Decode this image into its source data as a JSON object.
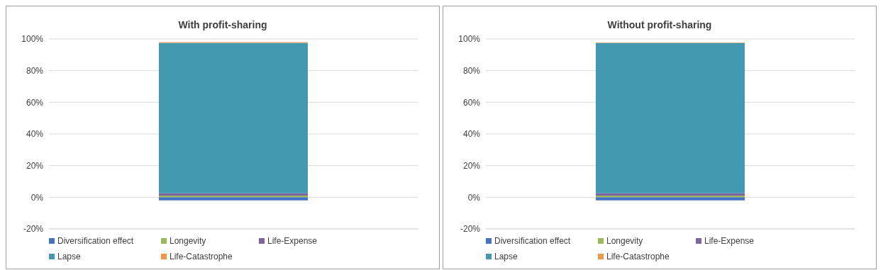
{
  "chart_data": [
    {
      "type": "bar",
      "title": "With profit-sharing",
      "categories": [
        null
      ],
      "stacked": true,
      "series": [
        {
          "name": "Diversification effect",
          "color": "#4472c4",
          "values": [
            -2
          ]
        },
        {
          "name": "Longevity",
          "color": "#9bbb59",
          "values": [
            1
          ]
        },
        {
          "name": "Life-Expense",
          "color": "#8064a2",
          "values": [
            1.5
          ]
        },
        {
          "name": "Lapse",
          "color": "#4299b0",
          "values": [
            95
          ]
        },
        {
          "name": "Life-Catastrophe",
          "color": "#f79646",
          "values": [
            0.5
          ]
        }
      ],
      "ylim": [
        -20,
        100
      ],
      "yticks": [
        {
          "value": -20,
          "label": "-20%"
        },
        {
          "value": 0,
          "label": "0%"
        },
        {
          "value": 20,
          "label": "20%"
        },
        {
          "value": 40,
          "label": "40%"
        },
        {
          "value": 60,
          "label": "60%"
        },
        {
          "value": 80,
          "label": "80%"
        },
        {
          "value": 100,
          "label": "100%"
        }
      ],
      "grid": "y",
      "legend": "bottom"
    },
    {
      "type": "bar",
      "title": "Without profit-sharing",
      "categories": [
        null
      ],
      "stacked": true,
      "series": [
        {
          "name": "Diversification effect",
          "color": "#4472c4",
          "values": [
            -2
          ]
        },
        {
          "name": "Longevity",
          "color": "#9bbb59",
          "values": [
            1
          ]
        },
        {
          "name": "Life-Expense",
          "color": "#8064a2",
          "values": [
            1.5
          ]
        },
        {
          "name": "Lapse",
          "color": "#4299b0",
          "values": [
            95
          ]
        },
        {
          "name": "Life-Catastrophe",
          "color": "#f79646",
          "values": [
            0.3
          ]
        }
      ],
      "ylim": [
        -20,
        100
      ],
      "yticks": [
        {
          "value": -20,
          "label": "-20%"
        },
        {
          "value": 0,
          "label": "0%"
        },
        {
          "value": 20,
          "label": "20%"
        },
        {
          "value": 40,
          "label": "40%"
        },
        {
          "value": 60,
          "label": "60%"
        },
        {
          "value": 80,
          "label": "80%"
        },
        {
          "value": 100,
          "label": "100%"
        }
      ],
      "grid": "y",
      "legend": "bottom"
    }
  ]
}
